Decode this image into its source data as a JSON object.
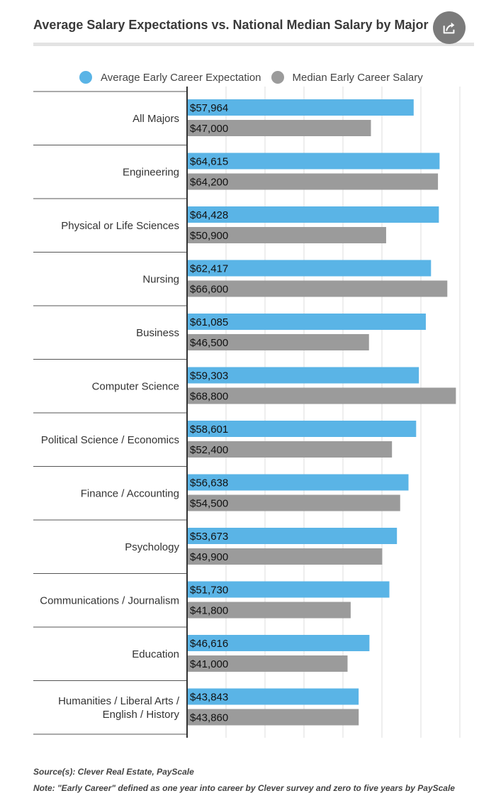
{
  "colors": {
    "expectation": "#5ab4e6",
    "median": "#9b9b9b",
    "grid": "#dddddd",
    "axis": "#333333"
  },
  "chart_data": {
    "type": "bar",
    "orientation": "horizontal",
    "title": "Average Salary Expectations vs. National Median Salary by Major",
    "legend_position": "top",
    "grid": true,
    "xlim": [
      0,
      70000
    ],
    "categories": [
      "All Majors",
      "Engineering",
      "Physical or Life Sciences",
      "Nursing",
      "Business",
      "Computer Science",
      "Political Science / Economics",
      "Finance / Accounting",
      "Psychology",
      "Communications / Journalism",
      "Education",
      "Humanities / Liberal Arts / English / History"
    ],
    "category_lines": [
      [
        "All Majors"
      ],
      [
        "Engineering"
      ],
      [
        "Physical or Life Sciences"
      ],
      [
        "Nursing"
      ],
      [
        "Business"
      ],
      [
        "Computer Science"
      ],
      [
        "Political Science / Economics"
      ],
      [
        "Finance / Accounting"
      ],
      [
        "Psychology"
      ],
      [
        "Communications / Journalism"
      ],
      [
        "Education"
      ],
      [
        "Humanities / Liberal Arts /",
        "English / History"
      ]
    ],
    "series": [
      {
        "name": "Average Early Career Expectation",
        "values": [
          57964,
          64615,
          64428,
          62417,
          61085,
          59303,
          58601,
          56638,
          53673,
          51730,
          46616,
          43843
        ],
        "labels": [
          "$57,964",
          "$64,615",
          "$64,428",
          "$62,417",
          "$61,085",
          "$59,303",
          "$58,601",
          "$56,638",
          "$53,673",
          "$51,730",
          "$46,616",
          "$43,843"
        ]
      },
      {
        "name": "Median Early Career Salary",
        "values": [
          47000,
          64200,
          50900,
          66600,
          46500,
          68800,
          52400,
          54500,
          49900,
          41800,
          41000,
          43860
        ],
        "labels": [
          "$47,000",
          "$64,200",
          "$50,900",
          "$66,600",
          "$46,500",
          "$68,800",
          "$52,400",
          "$54,500",
          "$49,900",
          "$41,800",
          "$41,000",
          "$43,860"
        ]
      }
    ]
  },
  "source": "Source(s): Clever Real Estate, PayScale",
  "note": "Note: \"Early Career\" defined as one year into career by Clever survey and zero to five years by PayScale"
}
